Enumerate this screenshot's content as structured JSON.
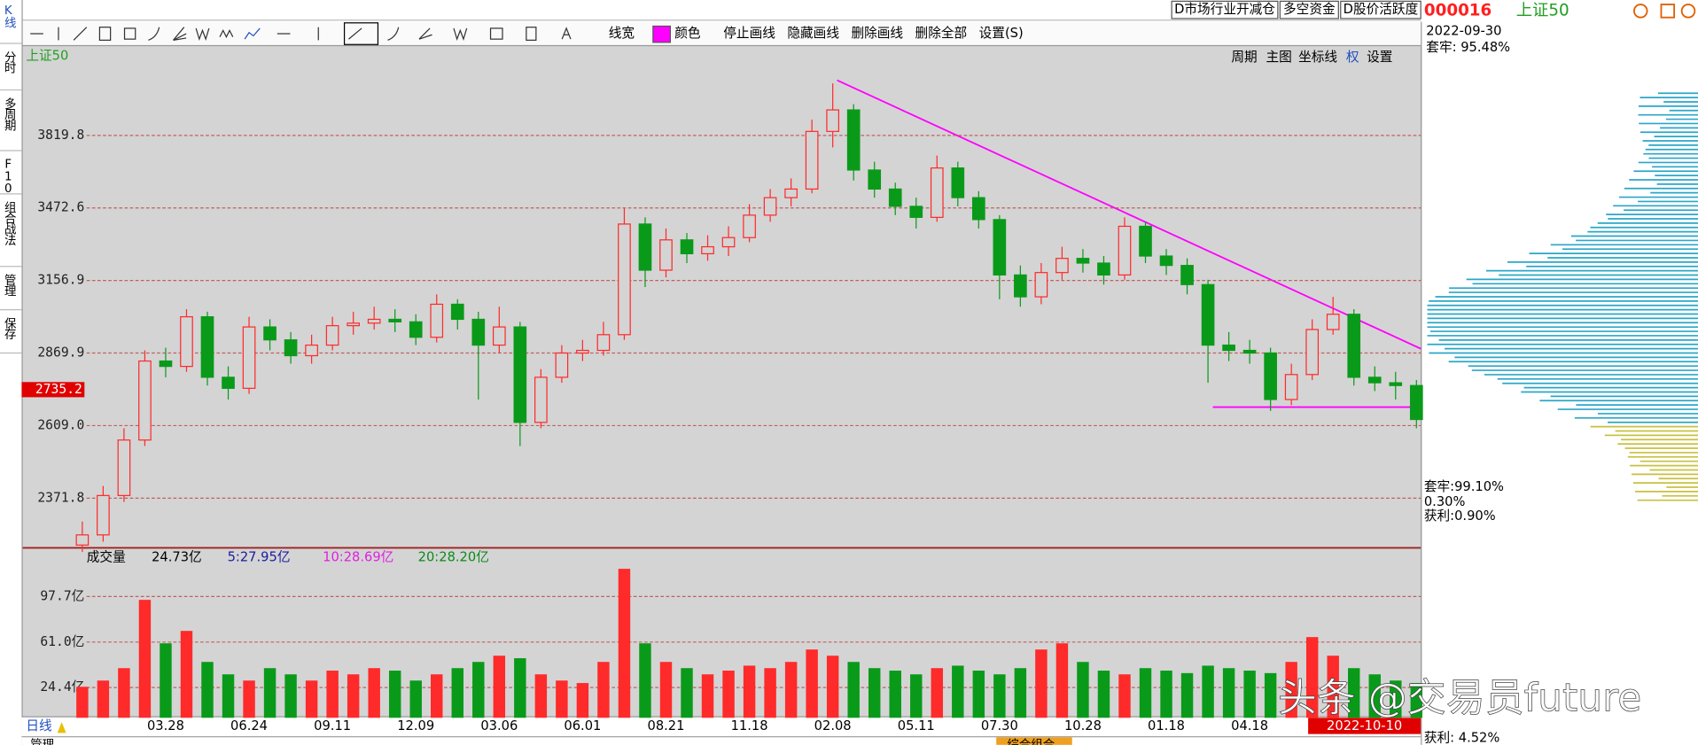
{
  "chart_data": [
    {
      "type": "candlestick",
      "title": "上证50",
      "log_scale": true,
      "grid": true,
      "up_color": "#ff2a2a",
      "down_color": "#0a9a1a",
      "categories": [
        null,
        null,
        null,
        null,
        "03.28",
        null,
        null,
        null,
        "06.24",
        null,
        null,
        null,
        "09.11",
        null,
        null,
        null,
        "12.09",
        null,
        null,
        null,
        "03.06",
        null,
        null,
        null,
        "06.01",
        null,
        null,
        null,
        "08.21",
        null,
        null,
        null,
        "11.18",
        null,
        null,
        null,
        "02.08",
        null,
        null,
        null,
        "05.11",
        null,
        null,
        null,
        "07.30",
        null,
        null,
        null,
        "10.28",
        null,
        null,
        null,
        "01.18",
        null,
        null,
        null,
        "04.18",
        null,
        null,
        null,
        null,
        null,
        null,
        null,
        null
      ],
      "open": [
        2230,
        2260,
        2380,
        2560,
        2840,
        2820,
        3010,
        2780,
        2740,
        2970,
        2920,
        2860,
        2900,
        2975,
        2985,
        3000,
        2990,
        2930,
        3060,
        3000,
        2900,
        2970,
        2620,
        2780,
        2870,
        2880,
        2940,
        3400,
        3200,
        3330,
        3270,
        3300,
        3340,
        3440,
        3520,
        3560,
        3840,
        3950,
        3650,
        3560,
        3480,
        3430,
        3660,
        3520,
        3420,
        3180,
        3090,
        3190,
        3250,
        3230,
        3180,
        3390,
        3260,
        3220,
        3140,
        2900,
        2880,
        2870,
        2700,
        2790,
        2960,
        3020,
        2780,
        2760,
        2750
      ],
      "high": [
        2300,
        2410,
        2600,
        2880,
        2890,
        3040,
        3030,
        2820,
        3010,
        3000,
        2950,
        2940,
        3010,
        3030,
        3050,
        3040,
        3020,
        3100,
        3080,
        3030,
        3050,
        2990,
        2810,
        2900,
        2920,
        2990,
        3470,
        3430,
        3380,
        3360,
        3350,
        3390,
        3490,
        3560,
        3610,
        3900,
        4090,
        3980,
        3690,
        3590,
        3520,
        3720,
        3690,
        3550,
        3440,
        3220,
        3230,
        3300,
        3290,
        3260,
        3430,
        3410,
        3290,
        3250,
        3160,
        2950,
        2920,
        2890,
        2830,
        3000,
        3090,
        3040,
        2820,
        2800,
        2770
      ],
      "low": [
        2210,
        2240,
        2360,
        2540,
        2780,
        2800,
        2750,
        2700,
        2720,
        2880,
        2830,
        2830,
        2880,
        2940,
        2960,
        2950,
        2900,
        2910,
        2960,
        2700,
        2870,
        2540,
        2600,
        2760,
        2840,
        2860,
        2920,
        3130,
        3170,
        3230,
        3240,
        3260,
        3320,
        3410,
        3480,
        3540,
        3760,
        3600,
        3520,
        3440,
        3380,
        3410,
        3480,
        3380,
        3080,
        3050,
        3060,
        3160,
        3190,
        3140,
        3160,
        3230,
        3180,
        3100,
        2760,
        2840,
        2830,
        2660,
        2680,
        2770,
        2940,
        2750,
        2730,
        2700,
        2600
      ],
      "close": [
        2260,
        2380,
        2560,
        2840,
        2820,
        3010,
        2780,
        2740,
        2970,
        2920,
        2860,
        2900,
        2975,
        2985,
        3000,
        2990,
        2930,
        3060,
        3000,
        2900,
        2970,
        2620,
        2780,
        2870,
        2880,
        2940,
        3400,
        3200,
        3330,
        3270,
        3300,
        3340,
        3440,
        3520,
        3560,
        3840,
        3950,
        3650,
        3560,
        3480,
        3430,
        3660,
        3520,
        3420,
        3180,
        3090,
        3190,
        3250,
        3230,
        3180,
        3390,
        3260,
        3220,
        3140,
        2900,
        2880,
        2870,
        2700,
        2790,
        2960,
        3020,
        2780,
        2760,
        2750,
        2630
      ],
      "ylim": [
        2225,
        4280
      ],
      "yticks": [
        2371.8,
        {
          "value": 2609,
          "label": "2609.0"
        },
        2869.9,
        3156.9,
        3472.6,
        3819.8
      ],
      "last_price": 2735.2
    },
    {
      "type": "bar",
      "title": "成交量",
      "value_text": "24.73亿",
      "ma_labels": [
        {
          "text": "5:27.95亿",
          "color": "#1a1aa0"
        },
        {
          "text": "10:28.69亿",
          "color": "#e020e0"
        },
        {
          "text": "20:28.20亿",
          "color": "#0a8a1a"
        }
      ],
      "values": [
        25,
        30,
        40,
        95,
        60,
        70,
        45,
        35,
        30,
        40,
        35,
        30,
        38,
        35,
        40,
        38,
        30,
        35,
        40,
        45,
        50,
        48,
        35,
        30,
        28,
        45,
        120,
        60,
        45,
        40,
        35,
        38,
        42,
        40,
        45,
        55,
        50,
        45,
        40,
        38,
        35,
        40,
        42,
        38,
        35,
        40,
        55,
        60,
        45,
        38,
        35,
        40,
        38,
        36,
        42,
        40,
        38,
        36,
        45,
        65,
        50,
        40,
        35,
        30,
        28
      ],
      "ylim": [
        0,
        136
      ],
      "yticks": [
        {
          "value": 24.4,
          "label": "24.4亿"
        },
        {
          "value": 61.0,
          "label": "61.0亿"
        },
        {
          "value": 97.7,
          "label": "97.7亿"
        }
      ],
      "grid": true
    }
  ],
  "ui": {
    "top_buttons": [
      "D市场行业开减仓",
      "多空资金",
      "D股价活跃度"
    ],
    "sidebar": [
      "K线",
      "分时",
      "多周期",
      "F10",
      "组合战法",
      "管理",
      "保存"
    ],
    "toolbar": [
      "线宽",
      "颜色",
      "停止画线",
      "隐藏画线",
      "删除画线",
      "删除全部",
      "设置(S)"
    ],
    "chart_menu": [
      "周期",
      "主图",
      "坐标线",
      "权",
      "设置"
    ],
    "period": "日线",
    "cursor_date": "2022-10-10",
    "bottom_tabs": [
      "管理",
      "综合组合"
    ],
    "watermark": "头条 @交易员future",
    "side_panel": {
      "code": "000016",
      "name": "上证50",
      "date": "2022-09-30",
      "trapped_top": "套牢: 95.48%",
      "trapped": "套牢:99.10%",
      "mid": "0.30%",
      "profit": "获利:0.90%",
      "profit_bottom": "获利: 4.52%"
    }
  }
}
